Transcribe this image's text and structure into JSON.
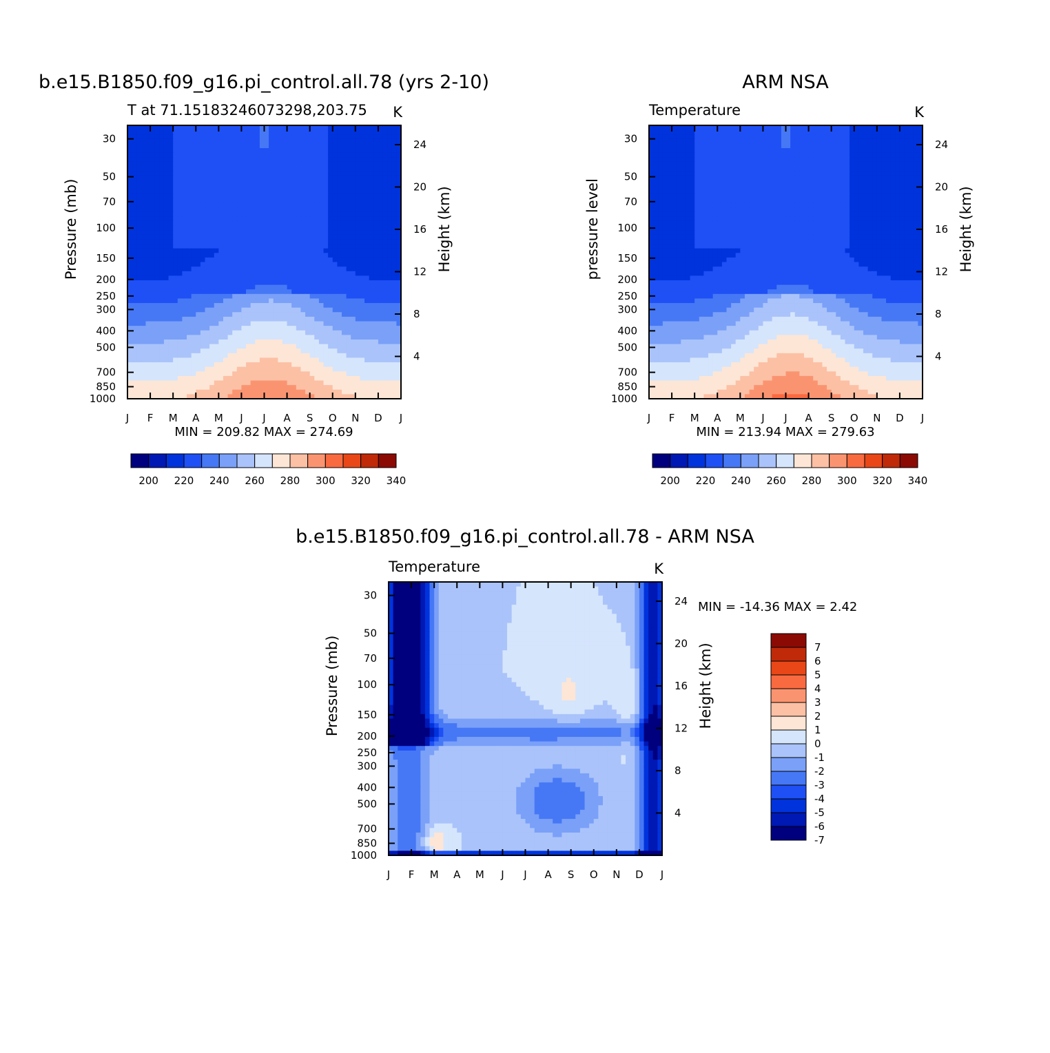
{
  "colors": {
    "temp_scale": [
      "#00007f",
      "#0018b4",
      "#0033dc",
      "#1e50f5",
      "#4678f5",
      "#7aa0f8",
      "#aac3fa",
      "#d5e5fc",
      "#fde6d6",
      "#fcc0a5",
      "#fa9470",
      "#fa6a40",
      "#e94717",
      "#c02a08",
      "#8c0a04"
    ],
    "diff_scale": [
      "#00007f",
      "#0018b4",
      "#0033dc",
      "#1e50f5",
      "#4678f5",
      "#7aa0f8",
      "#aac3fa",
      "#d5e5fc",
      "#fde6d6",
      "#fcc0a5",
      "#fa9470",
      "#fa6a40",
      "#e94717",
      "#c02a08",
      "#8c0a04"
    ]
  },
  "chart_data": [
    {
      "type": "heatmap",
      "title": "b.e15.B1850.f09_g16.pi_control.all.78 (yrs 2-10)",
      "subtitle_left": "T at 71.15183246073298,203.75",
      "subtitle_right": "K",
      "xlabel": "",
      "ylabel": "Pressure (mb)",
      "y2label": "Height (km)",
      "x_ticks": [
        "J",
        "F",
        "M",
        "A",
        "M",
        "J",
        "J",
        "A",
        "S",
        "O",
        "N",
        "D",
        "J"
      ],
      "y_ticks": [
        30,
        50,
        70,
        100,
        150,
        200,
        250,
        300,
        400,
        500,
        700,
        850,
        1000
      ],
      "y_scale": "log",
      "ylim": [
        1000,
        25
      ],
      "y2_ticks": [
        4,
        8,
        12,
        16,
        20,
        24
      ],
      "stats": "MIN = 209.82  MAX = 274.69",
      "min": 209.82,
      "max": 274.69,
      "colorbar_ticks": [
        "200",
        "220",
        "240",
        "260",
        "280",
        "300",
        "320",
        "340"
      ]
    },
    {
      "type": "heatmap",
      "title": "ARM NSA",
      "subtitle_left": "Temperature",
      "subtitle_right": "K",
      "xlabel": "",
      "ylabel": "pressure level",
      "y2label": "Height (km)",
      "x_ticks": [
        "J",
        "F",
        "M",
        "A",
        "M",
        "J",
        "J",
        "A",
        "S",
        "O",
        "N",
        "D",
        "J"
      ],
      "y_ticks": [
        30,
        50,
        70,
        100,
        150,
        200,
        250,
        300,
        400,
        500,
        700,
        850,
        1000
      ],
      "y_scale": "log",
      "ylim": [
        1000,
        25
      ],
      "y2_ticks": [
        4,
        8,
        12,
        16,
        20,
        24
      ],
      "stats": "MIN = 213.94  MAX = 279.63",
      "min": 213.94,
      "max": 279.63,
      "colorbar_ticks": [
        "200",
        "220",
        "240",
        "260",
        "280",
        "300",
        "320",
        "340"
      ]
    },
    {
      "type": "heatmap",
      "title": "b.e15.B1850.f09_g16.pi_control.all.78 - ARM NSA",
      "subtitle_left": "Temperature",
      "subtitle_right": "K",
      "xlabel": "",
      "ylabel": "Pressure (mb)",
      "y2label": "Height (km)",
      "x_ticks": [
        "J",
        "F",
        "M",
        "A",
        "M",
        "J",
        "J",
        "A",
        "S",
        "O",
        "N",
        "D",
        "J"
      ],
      "y_ticks": [
        30,
        50,
        70,
        100,
        150,
        200,
        250,
        300,
        400,
        500,
        700,
        850,
        1000
      ],
      "y_scale": "log",
      "ylim": [
        1000,
        25
      ],
      "y2_ticks": [
        4,
        8,
        12,
        16,
        20,
        24
      ],
      "stats": "MIN = -14.36 MAX =    2.42",
      "min": -14.36,
      "max": 2.42,
      "colorbar_ticks": [
        "7",
        "6",
        "5",
        "4",
        "3",
        "2",
        "1",
        "0",
        "-1",
        "-2",
        "-3",
        "-4",
        "-5",
        "-6",
        "-7"
      ]
    }
  ]
}
